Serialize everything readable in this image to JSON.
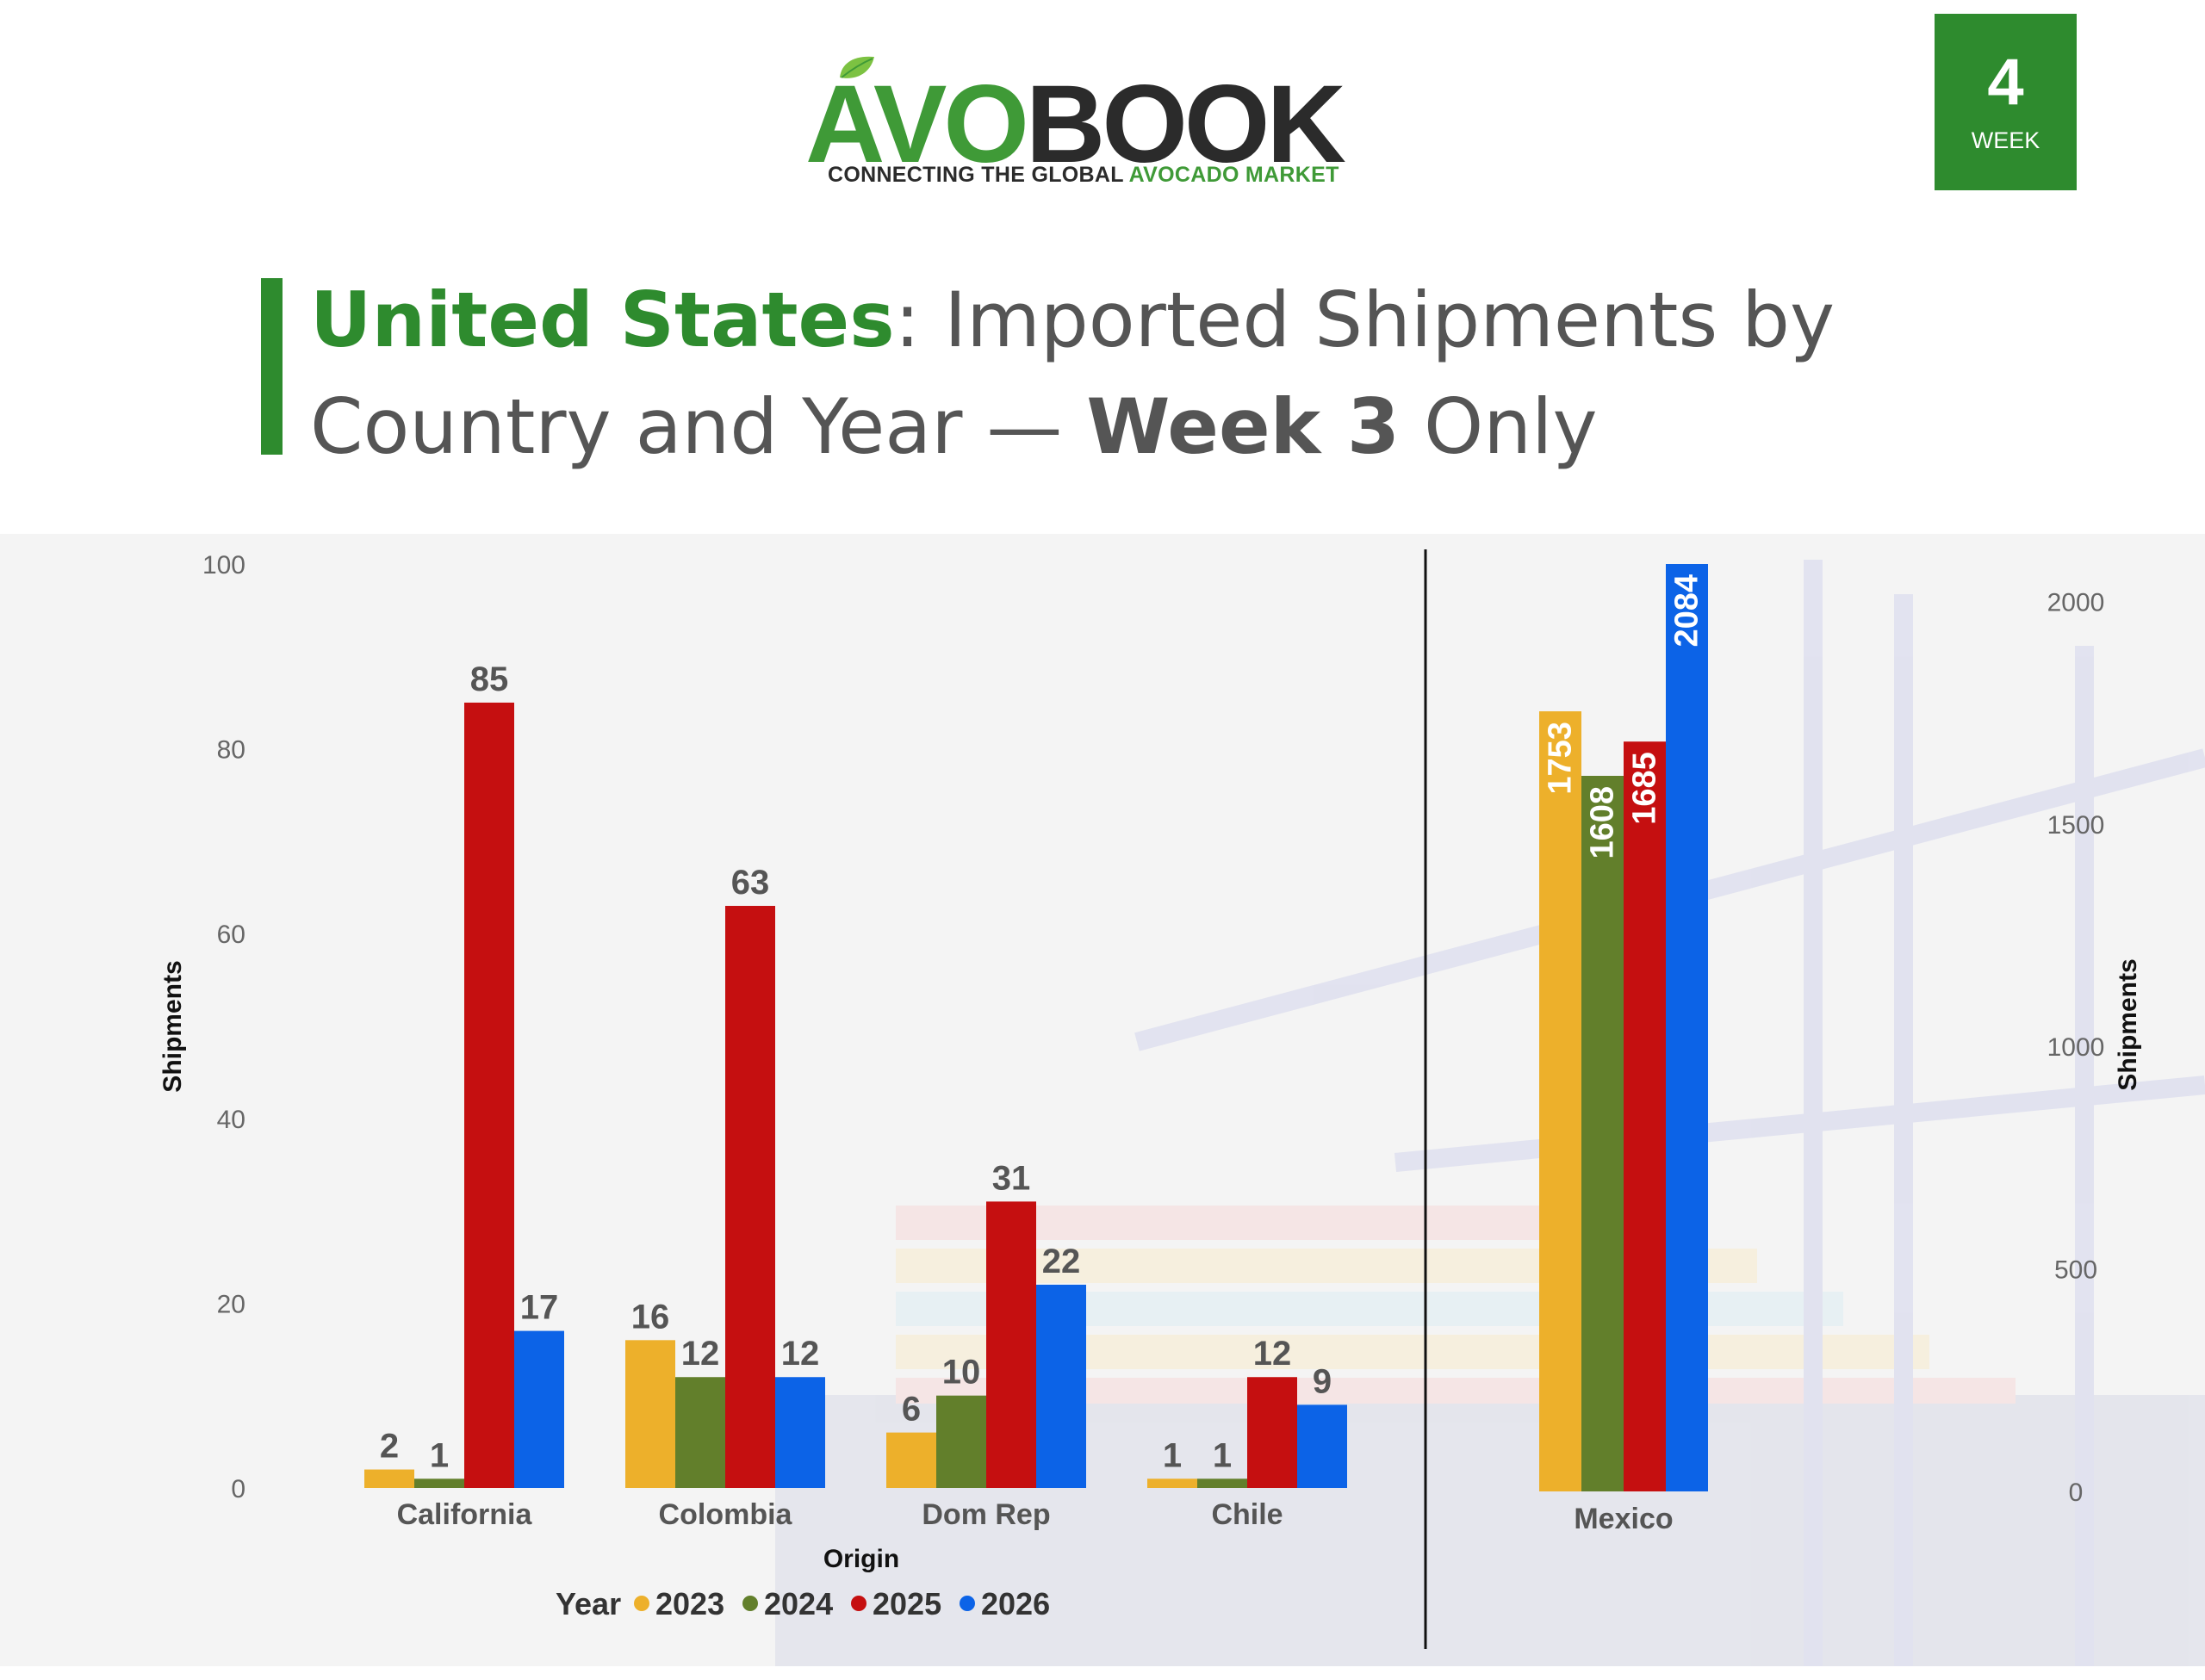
{
  "brand": {
    "logo_avo": "AVO",
    "logo_book": "BOOK",
    "tagline_part1": "CONNECTING THE GLOBAL ",
    "tagline_part2": "AVOCADO MARKET"
  },
  "week_badge": {
    "number": "4",
    "label": "WEEK"
  },
  "title": {
    "country": "United States",
    "rest1": ": Imported Shipments by Country and Year — ",
    "week": "Week 3",
    "rest2": " Only"
  },
  "colors": {
    "2023": "#edb02b",
    "2024": "#627f2b",
    "2025": "#c50f10",
    "2026": "#0c63e7",
    "brand_green": "#2e8b2e"
  },
  "chart_data": [
    {
      "type": "bar",
      "categories": [
        "California",
        "Colombia",
        "Dom Rep",
        "Chile"
      ],
      "series": [
        {
          "name": "2023",
          "values": [
            2,
            16,
            6,
            1
          ]
        },
        {
          "name": "2024",
          "values": [
            1,
            12,
            10,
            1
          ]
        },
        {
          "name": "2025",
          "values": [
            85,
            63,
            31,
            12
          ]
        },
        {
          "name": "2026",
          "values": [
            17,
            12,
            22,
            9
          ]
        }
      ],
      "xlabel": "Origin",
      "ylabel": "Shipments",
      "ylim": [
        0,
        100
      ],
      "yticks": [
        0,
        20,
        40,
        60,
        80,
        100
      ],
      "legend_title": "Year",
      "legend_position": "bottom"
    },
    {
      "type": "bar",
      "categories": [
        "Mexico"
      ],
      "series": [
        {
          "name": "2023",
          "values": [
            1753
          ]
        },
        {
          "name": "2024",
          "values": [
            1608
          ]
        },
        {
          "name": "2025",
          "values": [
            1685
          ]
        },
        {
          "name": "2026",
          "values": [
            2084
          ]
        }
      ],
      "ylabel": "Shipments",
      "ylim": [
        0,
        2084
      ],
      "yticks": [
        0,
        500,
        1000,
        1500,
        2000
      ],
      "axis_side": "right"
    }
  ]
}
